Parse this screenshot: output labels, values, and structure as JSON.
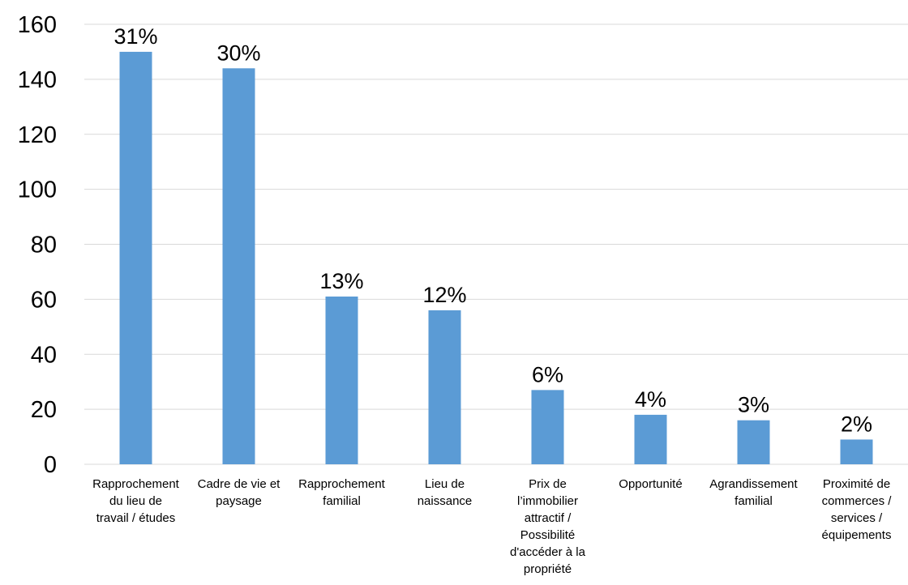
{
  "chart_data": {
    "type": "bar",
    "categories": [
      [
        "Rapprochement",
        "du lieu de",
        "travail / études"
      ],
      [
        "Cadre de vie et",
        "paysage"
      ],
      [
        "Rapprochement",
        "familial"
      ],
      [
        "Lieu de",
        "naissance"
      ],
      [
        "Prix de",
        "l’immobilier",
        "attractif /",
        "Possibilité",
        "d'accéder à la",
        "propriété"
      ],
      [
        "Opportunité"
      ],
      [
        "Agrandissement",
        "familial"
      ],
      [
        "Proximité de",
        "commerces /",
        "services /",
        "équipements"
      ]
    ],
    "values": [
      150,
      144,
      61,
      56,
      27,
      18,
      16,
      9
    ],
    "data_labels": [
      "31%",
      "30%",
      "13%",
      "12%",
      "6%",
      "4%",
      "3%",
      "2%"
    ],
    "yticks": [
      "0",
      "20",
      "40",
      "60",
      "80",
      "100",
      "120",
      "140",
      "160"
    ],
    "ylim": [
      0,
      160
    ],
    "grid": true,
    "title": "",
    "xlabel": "",
    "ylabel": "",
    "colors": {
      "bar": "#5b9bd5",
      "grid": "#d9d9d9"
    }
  }
}
